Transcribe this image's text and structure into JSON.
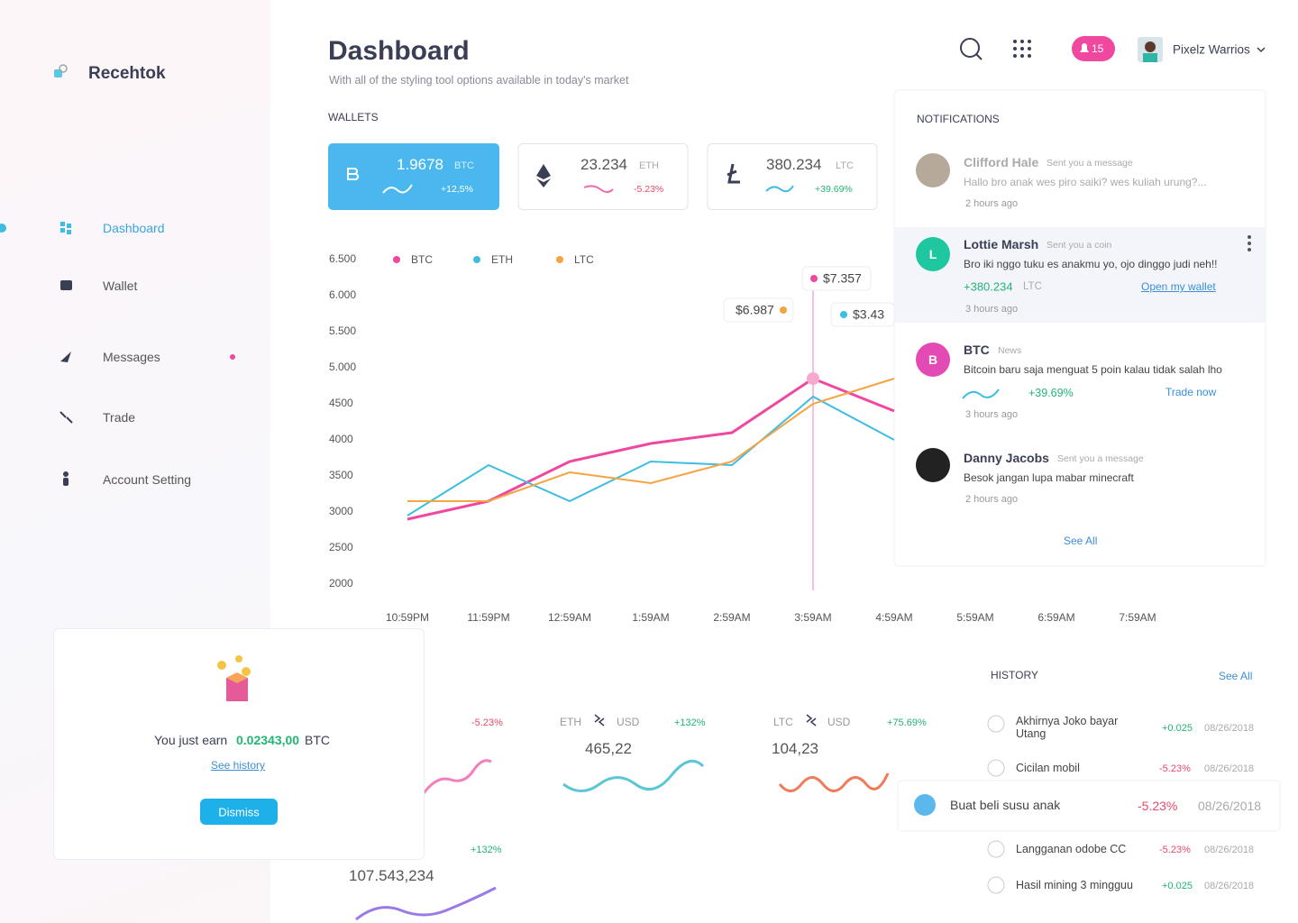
{
  "brand": "Recehtok",
  "nav": [
    "Dashboard",
    "Wallet",
    "Messages",
    "Trade",
    "Account Setting"
  ],
  "header": {
    "title": "Dashboard",
    "subtitle": "With all of the styling tool options available in today's market",
    "notification_count": 15,
    "user": "Pixelz Warrios"
  },
  "wallets": {
    "title": "WALLETS",
    "items": [
      {
        "amount": "1.9678",
        "unit": "BTC",
        "change": "+12,5%"
      },
      {
        "amount": "23.234",
        "unit": "ETH",
        "change": "-5.23%"
      },
      {
        "amount": "380.234",
        "unit": "LTC",
        "change": "+39.69%"
      }
    ]
  },
  "chart_data": {
    "type": "line",
    "categories": [
      "10:59PM",
      "11:59PM",
      "12:59AM",
      "1:59AM",
      "2:59AM",
      "3:59AM",
      "4:59AM",
      "5:59AM",
      "6:59AM",
      "7:59AM"
    ],
    "series": [
      {
        "name": "BTC",
        "color": "#f0479f",
        "values": [
          2900,
          3150,
          3700,
          3950,
          4100,
          4850,
          4400,
          null,
          null,
          null
        ]
      },
      {
        "name": "ETH",
        "color": "#3ebde0",
        "values": [
          2950,
          3650,
          3150,
          3700,
          3650,
          4600,
          4000,
          null,
          null,
          null
        ]
      },
      {
        "name": "LTC",
        "color": "#f5a442",
        "values": [
          3150,
          3150,
          3550,
          3400,
          3700,
          4500,
          4850,
          null,
          null,
          null
        ]
      }
    ],
    "ylim": [
      2000,
      6500
    ],
    "yticks": [
      {
        "value": 6500,
        "label": "6.500"
      },
      {
        "value": 6000,
        "label": "6.000"
      },
      {
        "value": 5500,
        "label": "5.500"
      },
      {
        "value": 5000,
        "label": "5.000"
      },
      4500,
      4000,
      3500,
      3000,
      2500,
      2000
    ],
    "grid": false,
    "annotations": [
      "$6.987",
      "$7.357",
      "$3.43"
    ]
  },
  "notifications": {
    "title": "NOTIFICATIONS",
    "see_all": "See All",
    "items": [
      {
        "name": "Clifford Hale",
        "action": "Sent you a message",
        "message": "Hallo bro anak wes piro saiki? wes kuliah urung?...",
        "time": "2 hours ago"
      },
      {
        "avatar": "L",
        "name": "Lottie Marsh",
        "action": "Sent you a coin",
        "message": "Bro iki nggo tuku es anakmu yo, ojo dinggo judi neh!!",
        "amount": "+380.234",
        "unit": "LTC",
        "link": "Open my wallet",
        "time": "3 hours ago"
      },
      {
        "avatar": "B",
        "name": "BTC",
        "action": "News",
        "message": "Bitcoin baru saja menguat 5 poin kalau tidak salah lho",
        "change": "+39.69%",
        "link": "Trade now",
        "time": "3 hours ago"
      },
      {
        "name": "Danny Jacobs",
        "action": "Sent you a message",
        "message": "Besok jangan lupa mabar minecraft",
        "time": "2 hours ago"
      }
    ]
  },
  "popup": {
    "text": "You just earn",
    "amount": "0.02343,00",
    "unit": "BTC",
    "link": "See history",
    "button": "Dismiss"
  },
  "conversions": [
    {
      "change": "-5.23%"
    },
    {
      "from": "ETH",
      "to": "USD",
      "change": "+132%",
      "value": "465,22"
    },
    {
      "from": "LTC",
      "to": "USD",
      "change": "+75.69%",
      "value": "104,23"
    },
    {
      "change": "+132%",
      "value": "107.543,234"
    }
  ],
  "history": {
    "title": "HISTORY",
    "see_all": "See All",
    "items": [
      {
        "title": "Akhirnya Joko bayar Utang",
        "amount": "+0.025",
        "date": "08/26/2018"
      },
      {
        "title": "Cicilan mobil",
        "amount": "-5.23%",
        "date": "08/26/2018"
      },
      {
        "title": "Buat beli susu anak",
        "amount": "-5.23%",
        "date": "08/26/2018"
      },
      {
        "title": "Langganan odobe CC",
        "amount": "-5.23%",
        "date": "08/26/2018"
      },
      {
        "title": "Hasil mining 3 mingguu",
        "amount": "+0.025",
        "date": "08/26/2018"
      }
    ]
  }
}
